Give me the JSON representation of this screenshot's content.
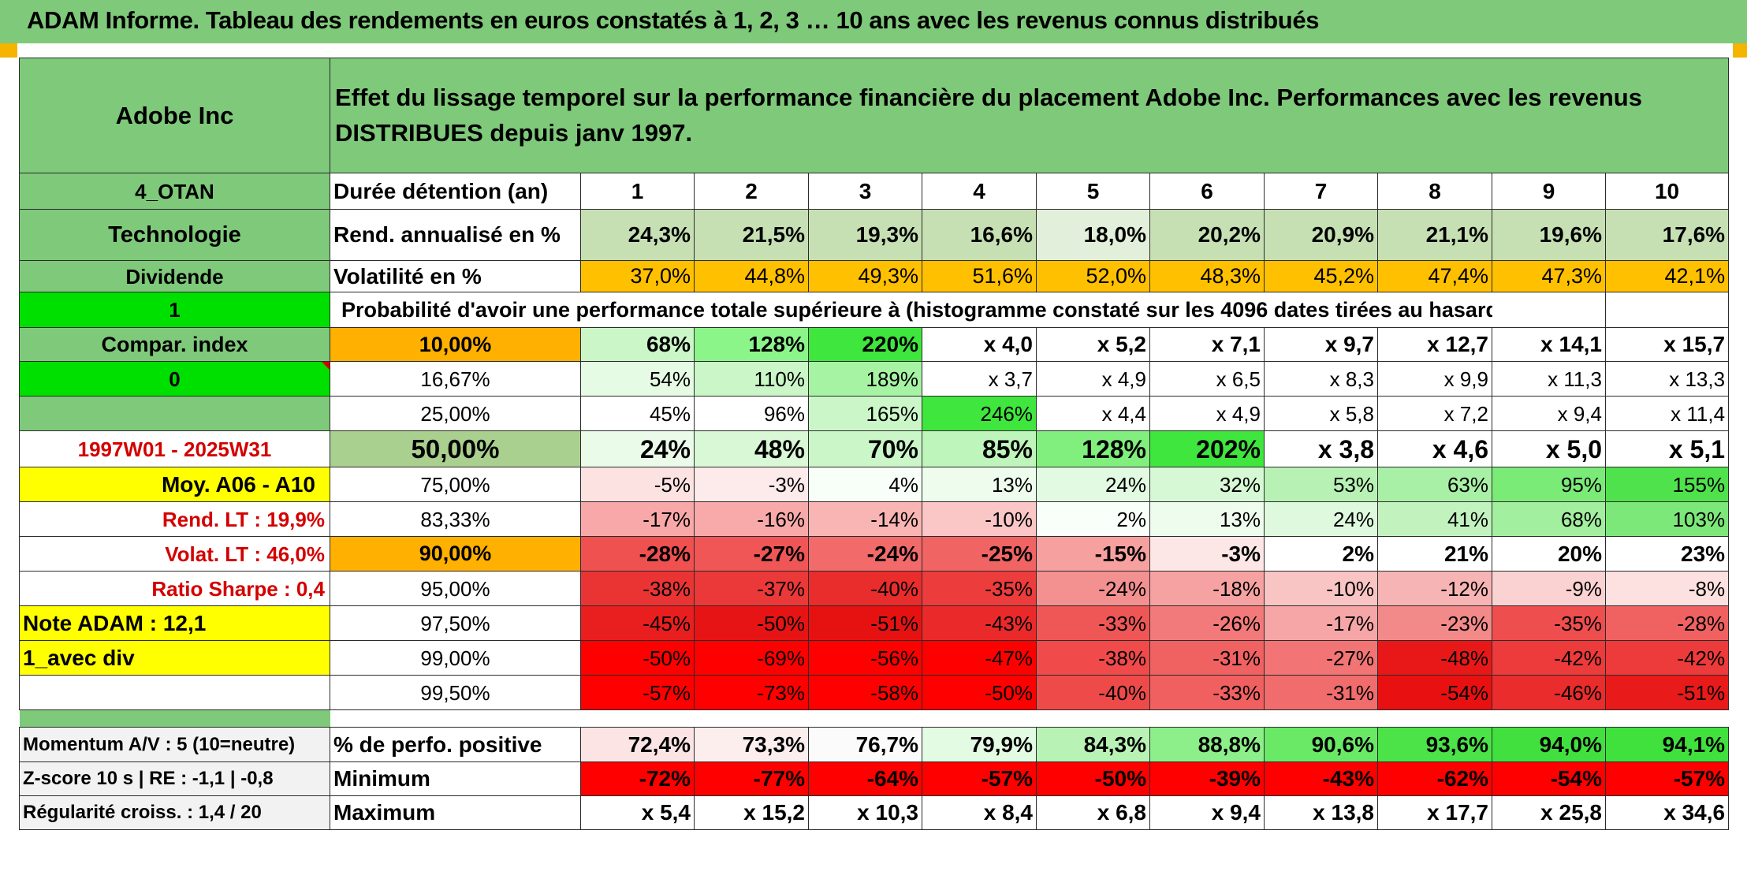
{
  "title": "ADAM Informe. Tableau des rendements en euros constatés à 1, 2, 3 … 10 ans avec les revenus connus distribués",
  "header": {
    "asset": "Adobe Inc",
    "description": "Effet du lissage temporel sur la performance financière du placement Adobe Inc. Performances avec les revenus DISTRIBUES depuis janv 1997."
  },
  "side": {
    "code": "4_OTAN",
    "sector": "Technologie",
    "dividend_label": "Dividende",
    "value1": "1",
    "compar_label": "Compar. index",
    "value0": "0",
    "period": "1997W01 - 2025W31",
    "moy": "Moy. A06 - A10",
    "rend_lt": "Rend. LT :",
    "rend_lt_val": "19,9%",
    "volat_lt": "Volat. LT :",
    "volat_lt_val": "46,0%",
    "sharpe": "Ratio Sharpe :",
    "sharpe_val": "0,4",
    "note": "Note ADAM : 12,1",
    "avec_div": "1_avec div",
    "momentum": "Momentum A/V : 5 (10=neutre)",
    "zscore": "Z-score 10 s | RE : -1,1 | -0,8",
    "regularite": "Régularité croiss. : 1,4 / 20"
  },
  "colors": {
    "green_header": "#7fc97a",
    "orange": "#ffc000",
    "yellow": "#ffff00",
    "bright_green": "#00e000"
  },
  "years": [
    "1",
    "2",
    "3",
    "4",
    "5",
    "6",
    "7",
    "8",
    "9",
    "10"
  ],
  "row_labels": {
    "duree": "Durée détention (an)",
    "rend": "Rend. annualisé en %",
    "vol": "Volatilité en %",
    "prob": "Probabilité d'avoir une performance totale supérieure à (histogramme constaté sur les 4096 dates tirées au hasard)",
    "pos": "% de perfo. positive",
    "min": "Minimum",
    "max": "Maximum"
  },
  "rend": [
    "24,3%",
    "21,5%",
    "19,3%",
    "16,6%",
    "18,0%",
    "20,2%",
    "20,9%",
    "21,1%",
    "19,6%",
    "17,6%"
  ],
  "vol": [
    "37,0%",
    "44,8%",
    "49,3%",
    "51,6%",
    "52,0%",
    "48,3%",
    "45,2%",
    "47,4%",
    "47,3%",
    "42,1%"
  ],
  "quantiles": [
    {
      "p": "10,00%",
      "v": [
        "68%",
        "128%",
        "220%",
        "x 4,0",
        "x 5,2",
        "x 7,1",
        "x 9,7",
        "x 12,7",
        "x 14,1",
        "x 15,7"
      ]
    },
    {
      "p": "16,67%",
      "v": [
        "54%",
        "110%",
        "189%",
        "x 3,7",
        "x 4,9",
        "x 6,5",
        "x 8,3",
        "x 9,9",
        "x 11,3",
        "x 13,3"
      ]
    },
    {
      "p": "25,00%",
      "v": [
        "45%",
        "96%",
        "165%",
        "246%",
        "x 4,4",
        "x 4,9",
        "x 5,8",
        "x 7,2",
        "x 9,4",
        "x 11,4"
      ]
    },
    {
      "p": "50,00%",
      "v": [
        "24%",
        "48%",
        "70%",
        "85%",
        "128%",
        "202%",
        "x 3,8",
        "x 4,6",
        "x 5,0",
        "x 5,1"
      ]
    },
    {
      "p": "75,00%",
      "v": [
        "-5%",
        "-3%",
        "4%",
        "13%",
        "24%",
        "32%",
        "53%",
        "63%",
        "95%",
        "155%"
      ]
    },
    {
      "p": "83,33%",
      "v": [
        "-17%",
        "-16%",
        "-14%",
        "-10%",
        "2%",
        "13%",
        "24%",
        "41%",
        "68%",
        "103%"
      ]
    },
    {
      "p": "90,00%",
      "v": [
        "-28%",
        "-27%",
        "-24%",
        "-25%",
        "-15%",
        "-3%",
        "2%",
        "21%",
        "20%",
        "23%"
      ]
    },
    {
      "p": "95,00%",
      "v": [
        "-38%",
        "-37%",
        "-40%",
        "-35%",
        "-24%",
        "-18%",
        "-10%",
        "-12%",
        "-9%",
        "-8%"
      ]
    },
    {
      "p": "97,50%",
      "v": [
        "-45%",
        "-50%",
        "-51%",
        "-43%",
        "-33%",
        "-26%",
        "-17%",
        "-23%",
        "-35%",
        "-28%"
      ]
    },
    {
      "p": "99,00%",
      "v": [
        "-50%",
        "-69%",
        "-56%",
        "-47%",
        "-38%",
        "-31%",
        "-27%",
        "-48%",
        "-42%",
        "-42%"
      ]
    },
    {
      "p": "99,50%",
      "v": [
        "-57%",
        "-73%",
        "-58%",
        "-50%",
        "-40%",
        "-33%",
        "-31%",
        "-54%",
        "-46%",
        "-51%"
      ]
    }
  ],
  "quantile_colors": [
    [
      "#cbf7c8",
      "#8cf58a",
      "#3fe63d",
      "#ffffff",
      "#ffffff",
      "#ffffff",
      "#ffffff",
      "#ffffff",
      "#ffffff",
      "#ffffff"
    ],
    [
      "#e5fbe3",
      "#cbf7c8",
      "#a6f3a3",
      "#ffffff",
      "#ffffff",
      "#ffffff",
      "#ffffff",
      "#ffffff",
      "#ffffff",
      "#ffffff"
    ],
    [
      "#ffffff",
      "#ffffff",
      "#cbf7c8",
      "#3fe63d",
      "#ffffff",
      "#ffffff",
      "#ffffff",
      "#ffffff",
      "#ffffff",
      "#ffffff"
    ],
    [
      "#ebfbea",
      "#d8f8d6",
      "#cbf7c8",
      "#bdf5ba",
      "#80ef7d",
      "#3fe63d",
      "#ffffff",
      "#ffffff",
      "#ffffff",
      "#ffffff"
    ],
    [
      "#fde2e2",
      "#fdeaea",
      "#f8fff8",
      "#eefcee",
      "#e3fae2",
      "#d6f8d4",
      "#b7f2b4",
      "#a8f0a5",
      "#7beb78",
      "#4fe24c"
    ],
    [
      "#f8a8a8",
      "#f8aaaa",
      "#f9b4b4",
      "#fbc6c6",
      "#f9fff9",
      "#eefcee",
      "#dff9de",
      "#c2f3bf",
      "#a2ef9f",
      "#7de87a"
    ],
    [
      "#ef5050",
      "#f05656",
      "#f26a6a",
      "#f16464",
      "#f6a0a0",
      "#fde6e6",
      "#ffffff",
      "#ffffff",
      "#ffffff",
      "#ffffff"
    ],
    [
      "#ea3434",
      "#eb3838",
      "#e92c2c",
      "#ec3c3c",
      "#f39090",
      "#f6a2a2",
      "#f9c4c4",
      "#f7b4b4",
      "#fbd2d2",
      "#fde0e0"
    ],
    [
      "#e91e1e",
      "#e61414",
      "#e61212",
      "#ea2a2a",
      "#ef5656",
      "#f27a7a",
      "#f6a6a6",
      "#f38a8a",
      "#ee4e4e",
      "#f06262"
    ],
    [
      "#ff0000",
      "#ff0000",
      "#ff0000",
      "#ff0000",
      "#f04a4a",
      "#f06262",
      "#f27474",
      "#e81818",
      "#ed3a3a",
      "#ed3a3a"
    ],
    [
      "#ff0000",
      "#ff0000",
      "#ff0000",
      "#ff0000",
      "#ef4a4a",
      "#f06060",
      "#f16c6c",
      "#e81010",
      "#ea2c2c",
      "#e81a1a"
    ]
  ],
  "pct_color": [
    "#ffb000",
    "#ffffff",
    "#ffffff",
    "#a9d08e",
    "#ffffff",
    "#ffffff",
    "#ffb000",
    "#ffffff",
    "#ffffff",
    "#ffffff",
    "#ffffff"
  ],
  "pos": [
    "72,4%",
    "73,3%",
    "76,7%",
    "79,9%",
    "84,3%",
    "88,8%",
    "90,6%",
    "93,6%",
    "94,0%",
    "94,1%"
  ],
  "pos_colors": [
    "#fde4e4",
    "#fdeeee",
    "#fbfbfb",
    "#e4fbe3",
    "#b8f3b5",
    "#8cef89",
    "#6ae967",
    "#4be348",
    "#42e03f",
    "#40e03d"
  ],
  "min": [
    "-72%",
    "-77%",
    "-64%",
    "-57%",
    "-50%",
    "-39%",
    "-43%",
    "-62%",
    "-54%",
    "-57%"
  ],
  "min_colors": [
    "#ff0000",
    "#ff0000",
    "#ff0000",
    "#ff0000",
    "#ff0000",
    "#ff0000",
    "#ff0000",
    "#ff0000",
    "#ff0000",
    "#ff0000"
  ],
  "max": [
    "x 5,4",
    "x 15,2",
    "x 10,3",
    "x 8,4",
    "x 6,8",
    "x 9,4",
    "x 13,8",
    "x 17,7",
    "x 25,8",
    "x 34,6"
  ]
}
